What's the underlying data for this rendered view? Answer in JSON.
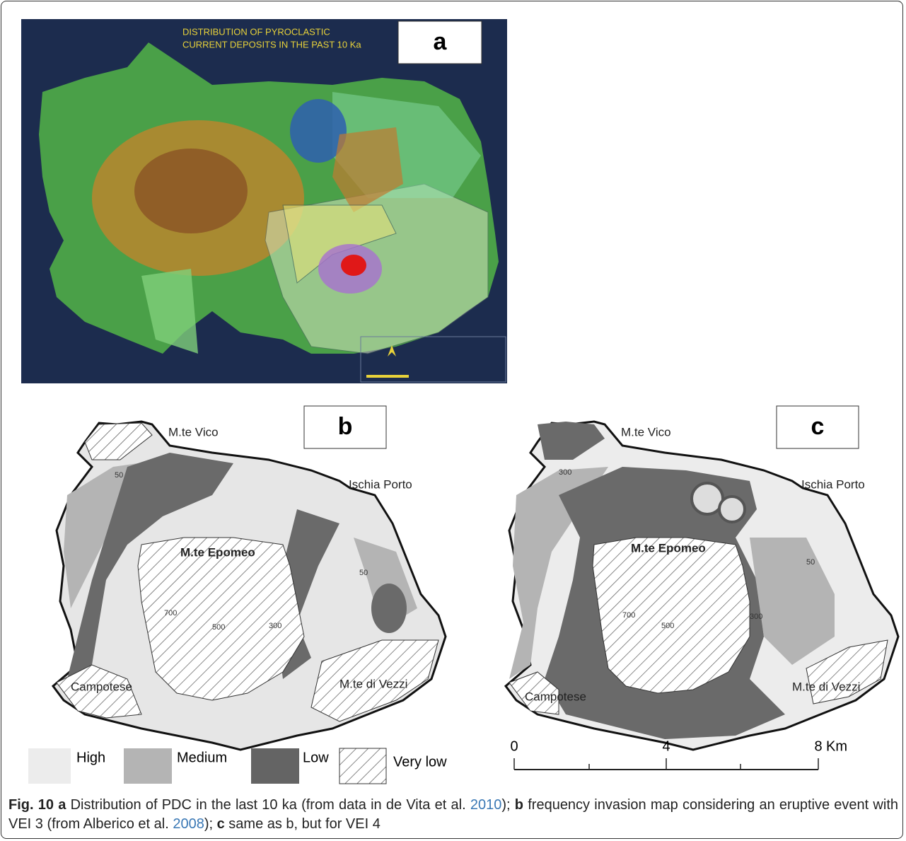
{
  "panel_a": {
    "title_lines": [
      "DISTRIBUTION OF PYROCLASTIC",
      "CURRENT DEPOSITS IN THE PAST 10 Ka"
    ],
    "label": "a"
  },
  "panel_b": {
    "label": "b",
    "places": [
      "M.te Vico",
      "Ischia Porto",
      "M.te Epomeo",
      "Campotese",
      "M.te di Vezzi"
    ],
    "contours": [
      50,
      700,
      500,
      300,
      50
    ]
  },
  "panel_c": {
    "label": "c",
    "places": [
      "M.te Vico",
      "Ischia Porto",
      "M.te Epomeo",
      "Campotese",
      "M.te di Vezzi"
    ],
    "contours": [
      300,
      50,
      700,
      500,
      300
    ]
  },
  "legend": [
    "High",
    "Medium",
    "Low",
    "Very low"
  ],
  "scale_bar": {
    "ticks": [
      0,
      4,
      8
    ],
    "unit": "Km"
  },
  "caption": {
    "figure": "Fig. 10",
    "segments": [
      {
        "kind": "bold",
        "text": " a"
      },
      {
        "kind": "plain",
        "text": " Distribution of PDC in the last 10 ka (from data in de Vita et al. "
      },
      {
        "kind": "link",
        "text": "2010"
      },
      {
        "kind": "plain",
        "text": "); "
      },
      {
        "kind": "bold",
        "text": "b"
      },
      {
        "kind": "plain",
        "text": " frequency invasion map considering an eruptive event with VEI 3 (from Alberico et al. "
      },
      {
        "kind": "link",
        "text": "2008"
      },
      {
        "kind": "plain",
        "text": "); "
      },
      {
        "kind": "bold",
        "text": "c"
      },
      {
        "kind": "plain",
        "text": " same as b, but for VEI 4"
      }
    ]
  }
}
